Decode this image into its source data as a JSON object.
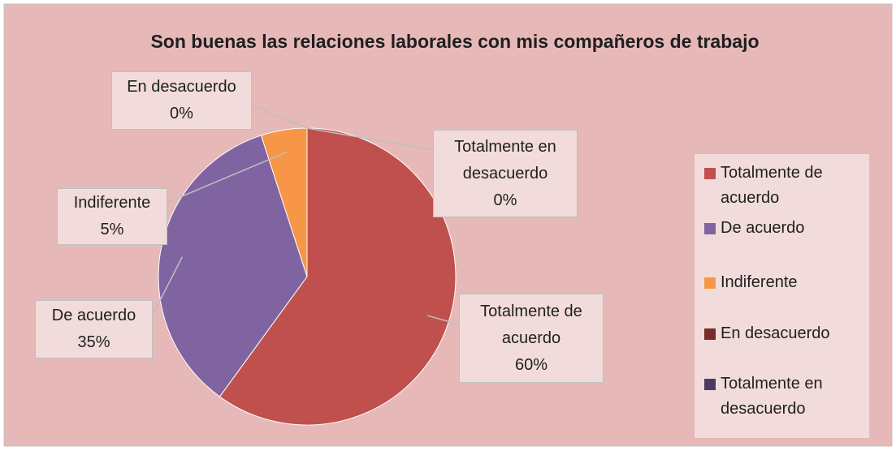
{
  "chart_data": {
    "type": "pie",
    "title": "Son buenas las relaciones laborales con mis compañeros de trabajo",
    "categories": [
      "Totalmente de acuerdo",
      "De acuerdo",
      "Indiferente",
      "En desacuerdo",
      "Totalmente en desacuerdo"
    ],
    "values": [
      60,
      35,
      5,
      0,
      0
    ],
    "value_labels": [
      "60%",
      "35%",
      "5%",
      "0%",
      "0%"
    ],
    "colors": [
      "#c0504d",
      "#8064a2",
      "#f79646",
      "#772c2a",
      "#4d3b62"
    ],
    "legend": "right"
  }
}
